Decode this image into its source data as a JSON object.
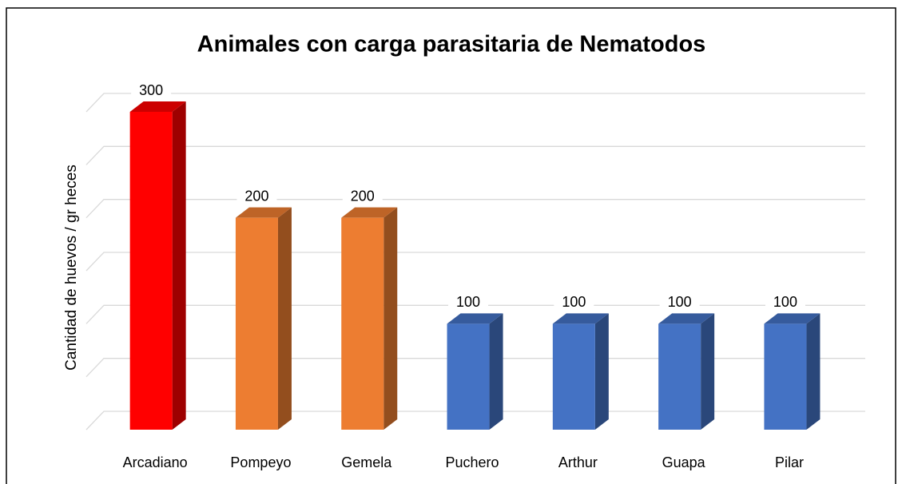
{
  "chart_data": {
    "type": "bar3d",
    "title": "Animales con carga parasitaria de Nematodos",
    "y_label": "Cantidad de huevos / gr heces",
    "categories": [
      "Arcadiano",
      "Pompeyo",
      "Gemela",
      "Puchero",
      "Arthur",
      "Guapa",
      "Pilar"
    ],
    "values": [
      300,
      200,
      200,
      100,
      100,
      100,
      100
    ],
    "colors": [
      "#ff0000",
      "#ed7d31",
      "#ed7d31",
      "#4472c4",
      "#4472c4",
      "#4472c4",
      "#4472c4"
    ],
    "ylim": [
      0,
      300
    ],
    "yticks": [
      0,
      50,
      100,
      150,
      200,
      250,
      300
    ],
    "grid": true
  }
}
